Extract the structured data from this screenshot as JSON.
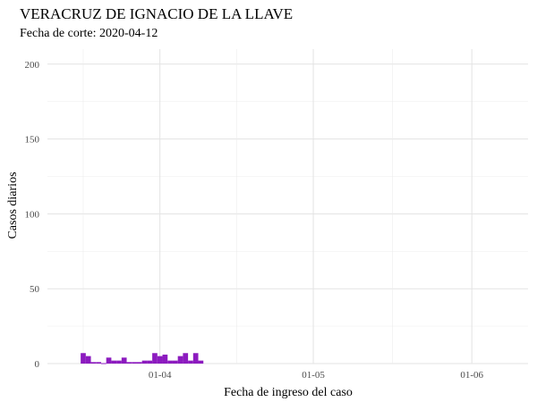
{
  "chart_data": {
    "type": "bar",
    "title": "VERACRUZ DE IGNACIO DE LA LLAVE",
    "subtitle": "Fecha de corte: 2020-04-12",
    "xlabel": "Fecha de ingreso del caso",
    "ylabel": "Casos diarios",
    "ylim": [
      0,
      210
    ],
    "yticks": [
      0,
      50,
      100,
      150,
      200
    ],
    "xlim": [
      "2020-03-10",
      "2020-06-12"
    ],
    "xticks": [
      {
        "date": "2020-04-01",
        "label": "01-04"
      },
      {
        "date": "2020-05-01",
        "label": "01-05"
      },
      {
        "date": "2020-06-01",
        "label": "01-06"
      }
    ],
    "grid": true,
    "color": "#8c1bbf",
    "x": [
      "2020-03-17",
      "2020-03-18",
      "2020-03-19",
      "2020-03-20",
      "2020-03-21",
      "2020-03-22",
      "2020-03-23",
      "2020-03-24",
      "2020-03-25",
      "2020-03-26",
      "2020-03-27",
      "2020-03-28",
      "2020-03-29",
      "2020-03-30",
      "2020-03-31",
      "2020-04-01",
      "2020-04-02",
      "2020-04-03",
      "2020-04-04",
      "2020-04-05",
      "2020-04-06",
      "2020-04-07",
      "2020-04-08",
      "2020-04-09"
    ],
    "values": [
      7,
      5,
      1,
      1,
      0,
      4,
      2,
      2,
      4,
      1,
      1,
      1,
      2,
      2,
      7,
      5,
      6,
      2,
      2,
      5,
      7,
      2,
      7,
      2
    ]
  }
}
